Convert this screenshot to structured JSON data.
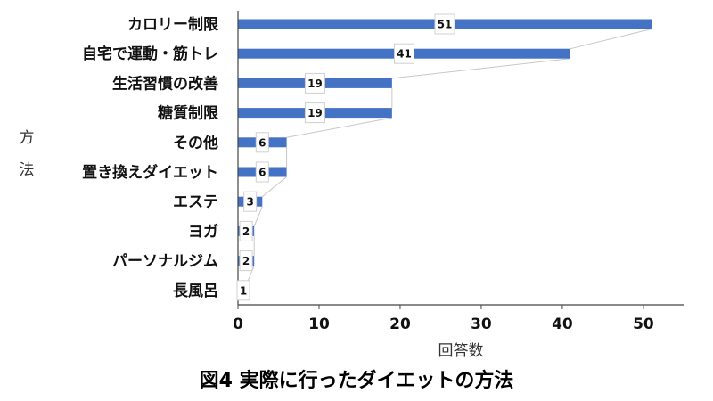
{
  "chart_data": {
    "type": "bar",
    "orientation": "horizontal",
    "title": "図4 実際に行ったダイエットの方法",
    "xlabel": "回答数",
    "ylabel": "方法",
    "categories": [
      "カロリー制限",
      "自宅で運動・筋トレ",
      "生活習慣の改善",
      "糖質制限",
      "その他",
      "置き換えダイエット",
      "エステ",
      "ヨガ",
      "パーソナルジム",
      "長風呂"
    ],
    "values": [
      51,
      41,
      19,
      19,
      6,
      6,
      3,
      2,
      2,
      1
    ],
    "xlim": [
      0,
      55
    ],
    "xticks": [
      0,
      10,
      20,
      30,
      40,
      50
    ],
    "grid": false,
    "bar_color": "#4472c4"
  }
}
